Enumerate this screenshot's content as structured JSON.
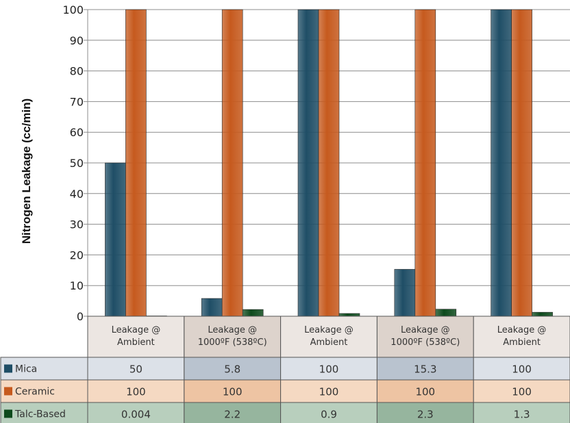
{
  "chart_data": {
    "type": "bar",
    "ylabel": "Nitrogen Leakage (cc/min)",
    "ylim": [
      0,
      100
    ],
    "yticks": [
      0,
      10,
      20,
      30,
      40,
      50,
      60,
      70,
      80,
      90,
      100
    ],
    "grid": true,
    "categories": [
      [
        "Leakage @",
        "Ambient"
      ],
      [
        "Leakage @",
        "1000ºF (538ºC)"
      ],
      [
        "Leakage @",
        "Ambient"
      ],
      [
        "Leakage @",
        "1000ºF (538ºC)"
      ],
      [
        "Leakage @",
        "Ambient"
      ]
    ],
    "series": [
      {
        "name": "Mica",
        "color": "#1f4e66",
        "values": [
          50,
          5.8,
          100,
          15.3,
          100
        ],
        "labels": [
          "50",
          "5.8",
          "100",
          "15.3",
          "100"
        ]
      },
      {
        "name": "Ceramic",
        "color": "#c65a1e",
        "values": [
          100,
          100,
          100,
          100,
          100
        ],
        "labels": [
          "100",
          "100",
          "100",
          "100",
          "100"
        ]
      },
      {
        "name": "Talc-Based",
        "color": "#0d4a1c",
        "values": [
          0.004,
          2.2,
          0.9,
          2.3,
          1.3
        ],
        "labels": [
          "0.004",
          "2.2",
          "0.9",
          "2.3",
          "1.3"
        ]
      }
    ],
    "table": {
      "header_colors": [
        "#ece6e2",
        "#ddd3cc"
      ],
      "row_colors": [
        [
          "#dce1e8",
          "#b9c3cf"
        ],
        [
          "#f5d9c2",
          "#eec4a3"
        ],
        [
          "#b8cfbd",
          "#96b59e"
        ]
      ]
    }
  }
}
